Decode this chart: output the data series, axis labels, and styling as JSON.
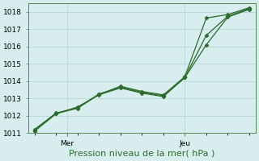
{
  "line1_x": [
    0,
    1,
    2,
    3,
    4,
    5,
    6,
    7,
    8,
    9,
    10
  ],
  "line1_y": [
    1011.1,
    1012.1,
    1012.5,
    1013.2,
    1013.6,
    1013.3,
    1013.1,
    1014.2,
    1016.1,
    1017.7,
    1018.15
  ],
  "line2_x": [
    0,
    1,
    2,
    3,
    4,
    5,
    6,
    7,
    8,
    9,
    10
  ],
  "line2_y": [
    1011.2,
    1012.15,
    1012.45,
    1013.25,
    1013.65,
    1013.35,
    1013.15,
    1014.2,
    1016.65,
    1017.75,
    1018.2
  ],
  "line3_x": [
    0,
    1,
    2,
    3,
    4,
    5,
    6,
    7,
    8,
    9,
    10
  ],
  "line3_y": [
    1011.15,
    1012.12,
    1012.42,
    1013.22,
    1013.7,
    1013.4,
    1013.2,
    1014.25,
    1017.65,
    1017.85,
    1018.25
  ],
  "line_color": "#2d6a2d",
  "marker": "D",
  "markersize": 2.5,
  "background_color": "#d8eeee",
  "grid_color": "#b8d8d8",
  "xlabel": "Pression niveau de la mer( hPa )",
  "ylim": [
    1011,
    1018.5
  ],
  "xlim": [
    -0.3,
    10.3
  ],
  "yticks": [
    1011,
    1012,
    1013,
    1014,
    1015,
    1016,
    1017,
    1018
  ],
  "xtick_positions": [
    1.5,
    7.0
  ],
  "xtick_labels": [
    "Mer",
    "Jeu"
  ],
  "xlabel_fontsize": 8,
  "tick_fontsize": 6.5
}
